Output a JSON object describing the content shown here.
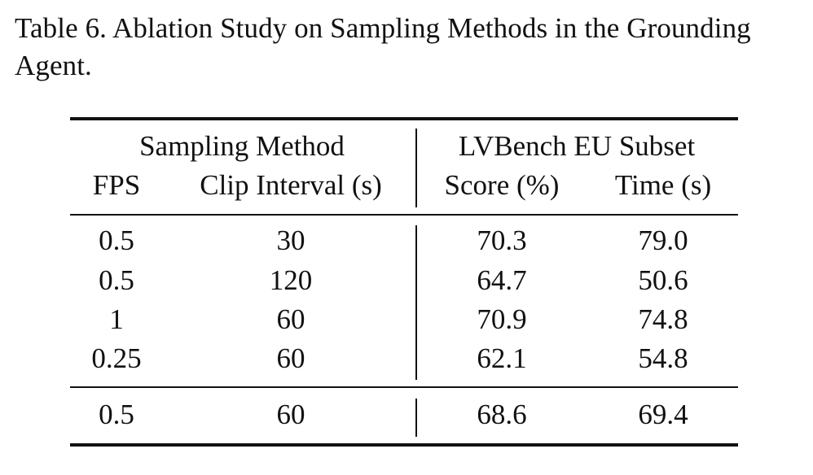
{
  "caption": "Table 6.  Ablation Study on Sampling Methods in the Grounding Agent.",
  "table": {
    "group_headers": [
      "Sampling Method",
      "LVBench EU Subset"
    ],
    "columns": [
      "FPS",
      "Clip Interval (s)",
      "Score (%)",
      "Time (s)"
    ],
    "rows": [
      [
        "0.5",
        "30",
        "70.3",
        "79.0"
      ],
      [
        "0.5",
        "120",
        "64.7",
        "50.6"
      ],
      [
        "1",
        "60",
        "70.9",
        "74.8"
      ],
      [
        "0.25",
        "60",
        "62.1",
        "54.8"
      ]
    ],
    "final_row": [
      "0.5",
      "60",
      "68.6",
      "69.4"
    ]
  }
}
